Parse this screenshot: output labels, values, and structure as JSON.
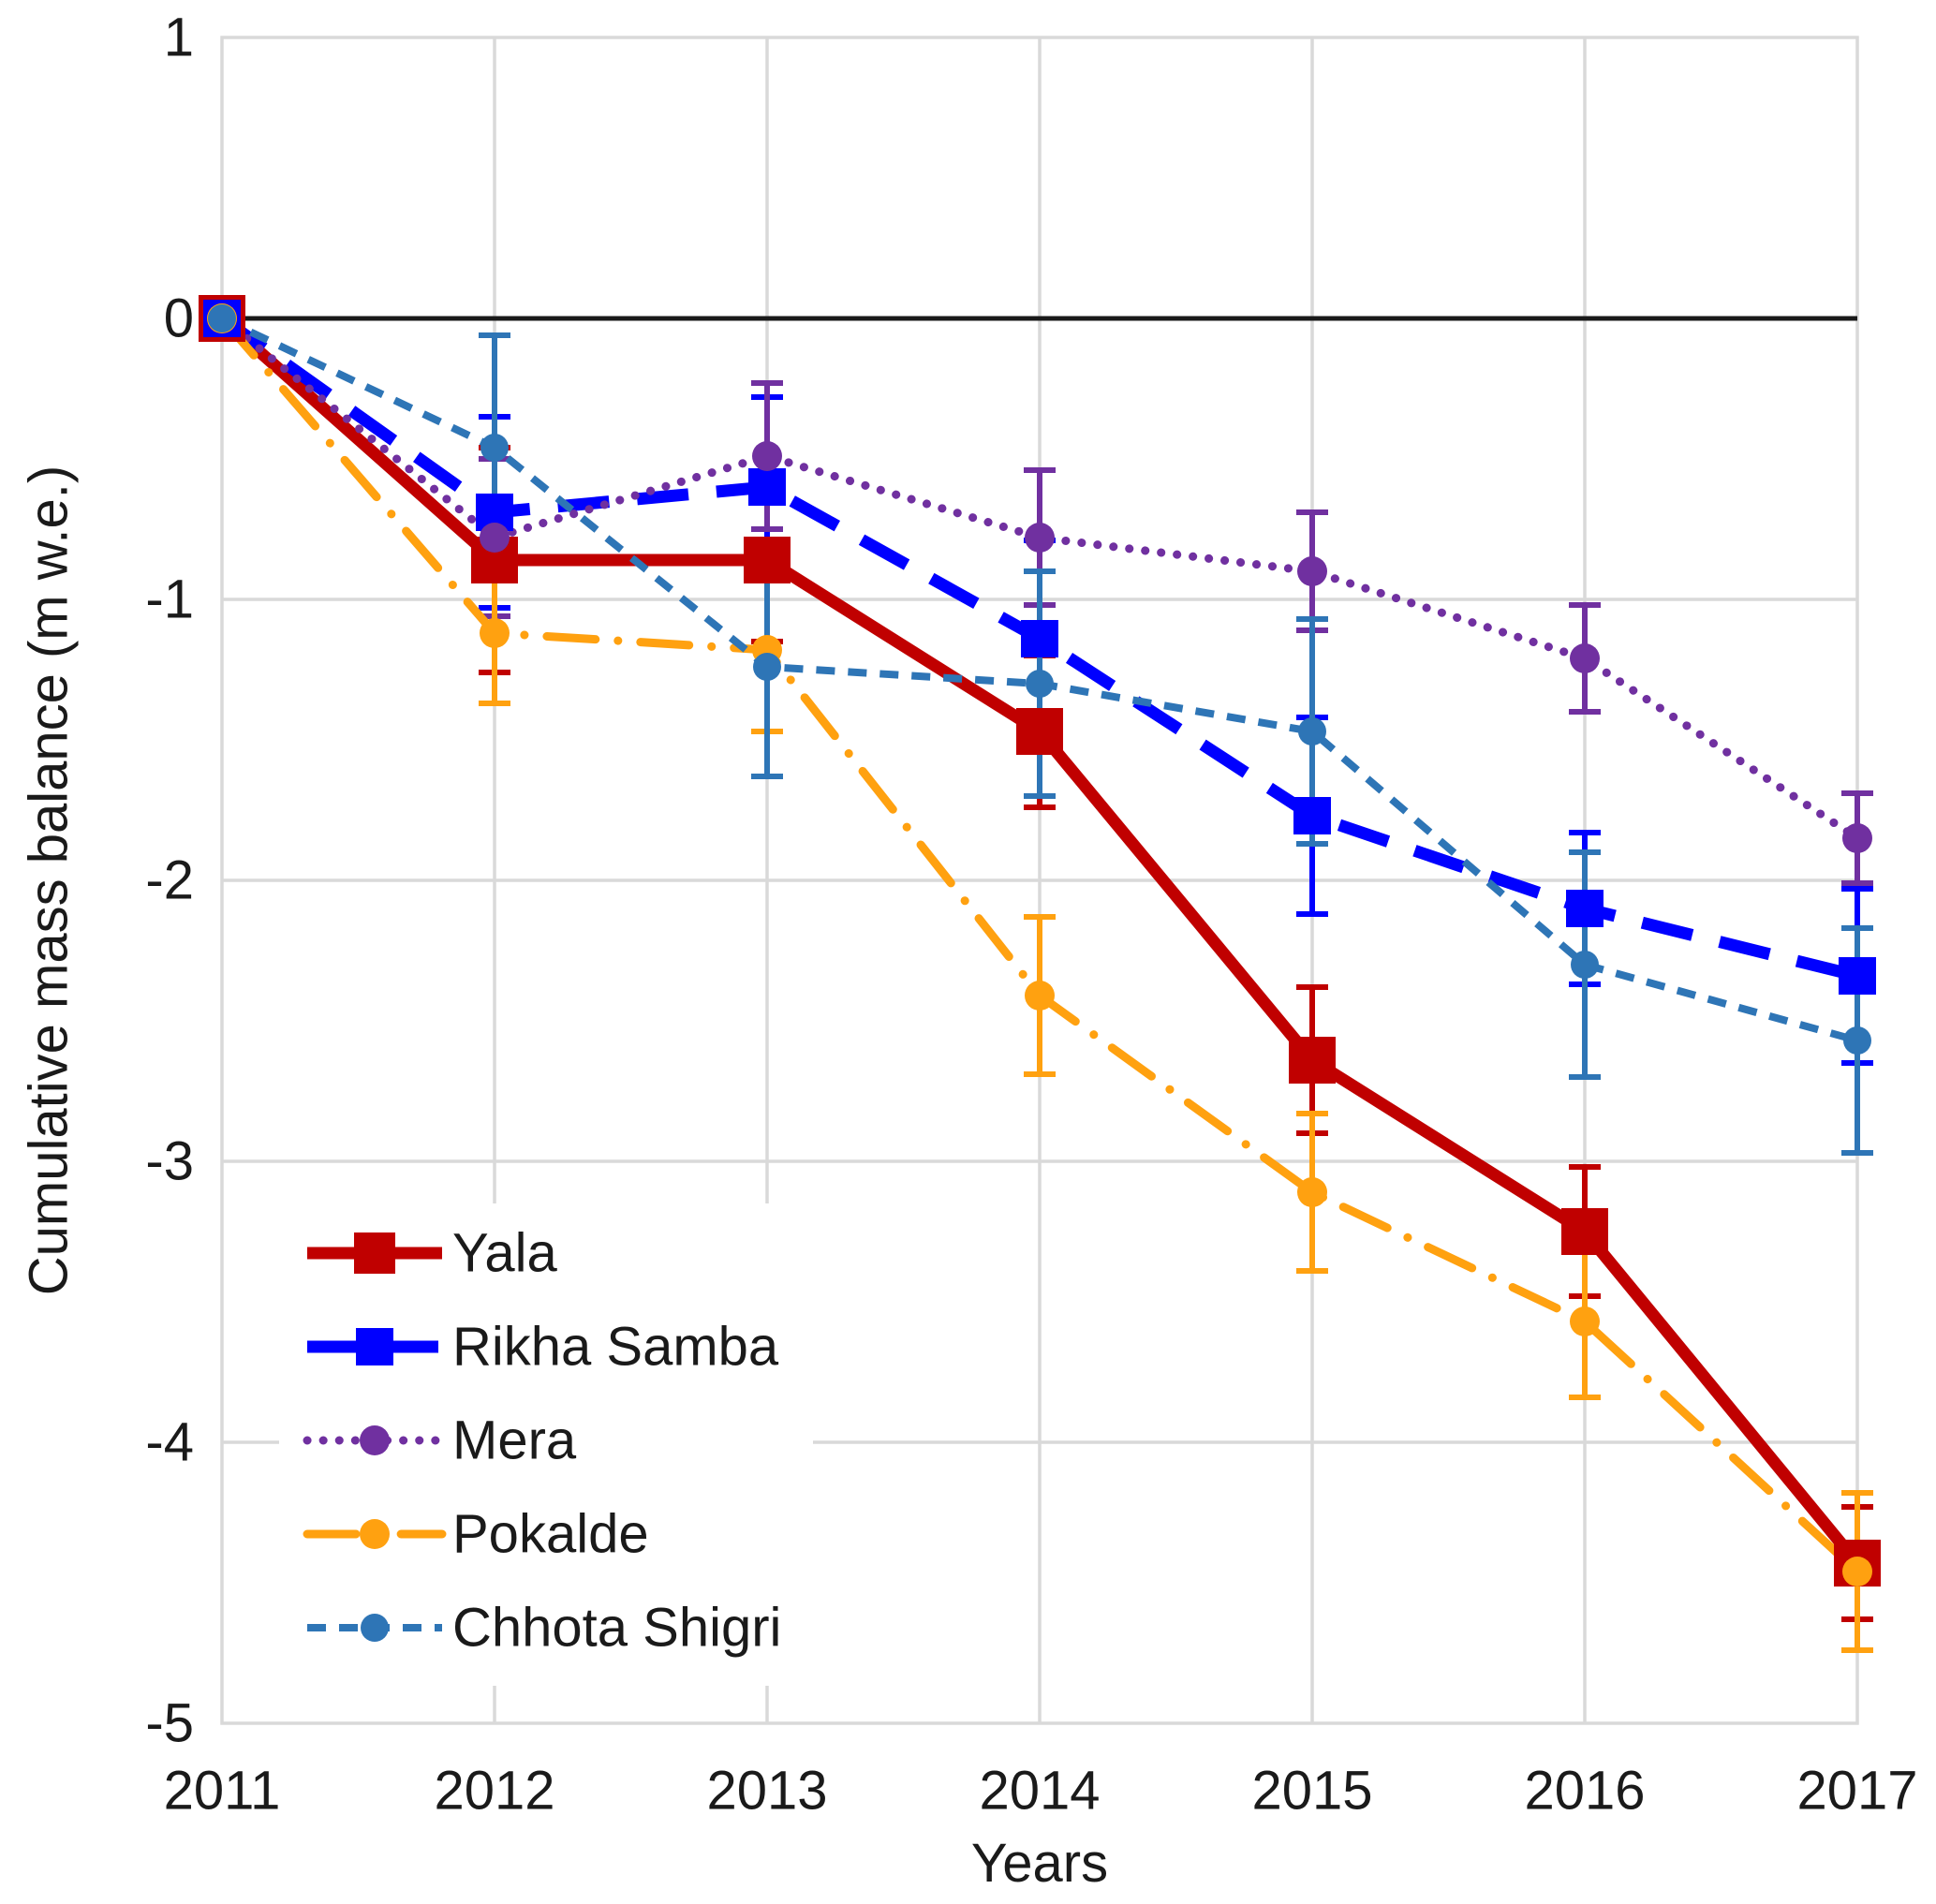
{
  "chart_data": {
    "type": "line",
    "title": "",
    "xlabel": "Years",
    "ylabel": "Cumulative mass balance (m w.e.)",
    "x": [
      2011,
      2012,
      2013,
      2014,
      2015,
      2016,
      2017
    ],
    "xticks": [
      "2011",
      "2012",
      "2013",
      "2014",
      "2015",
      "2016",
      "2017"
    ],
    "yticks": [
      "1",
      "0",
      "-1",
      "-2",
      "-3",
      "-4",
      "-5"
    ],
    "ytick_values": [
      1,
      0,
      -1,
      -2,
      -3,
      -4,
      -5
    ],
    "ylim": [
      -5,
      1
    ],
    "grid": true,
    "zero_line": true,
    "legend_position": "inside-bottom-left",
    "error_bars": true,
    "series": [
      {
        "name": "Yala",
        "color": "#C00000",
        "line_style": "solid",
        "marker": "square",
        "values": [
          0,
          -0.86,
          -0.86,
          -1.47,
          -2.64,
          -3.25,
          -4.43
        ],
        "errors": [
          0,
          0.4,
          0.29,
          0.27,
          0.26,
          0.23,
          0.2
        ]
      },
      {
        "name": "Rikha Samba",
        "color": "#0000FF",
        "line_style": "dashed",
        "marker": "square",
        "values": [
          0,
          -0.69,
          -0.6,
          -1.14,
          -1.77,
          -2.1,
          -2.34
        ],
        "errors": [
          0,
          0.34,
          0.32,
          0.35,
          0.35,
          0.27,
          0.31
        ]
      },
      {
        "name": "Mera",
        "color": "#7030A0",
        "line_style": "dotted",
        "marker": "circle",
        "values": [
          0,
          -0.78,
          -0.49,
          -0.78,
          -0.9,
          -1.21,
          -1.85
        ],
        "errors": [
          0,
          0.28,
          0.26,
          0.24,
          0.21,
          0.19,
          0.16
        ]
      },
      {
        "name": "Pokalde",
        "color": "#FFA110",
        "line_style": "dashdot",
        "marker": "circle",
        "values": [
          0,
          -1.12,
          -1.18,
          -2.41,
          -3.11,
          -3.57,
          -4.46
        ],
        "errors": [
          0,
          0.25,
          0.29,
          0.28,
          0.28,
          0.27,
          0.28
        ]
      },
      {
        "name": "Chhota Shigri",
        "color": "#2E75B6",
        "line_style": "dashed-small",
        "marker": "circle",
        "values": [
          0,
          -0.46,
          -1.24,
          -1.3,
          -1.47,
          -2.3,
          -2.57
        ],
        "errors": [
          0,
          0.4,
          0.39,
          0.4,
          0.4,
          0.4,
          0.4
        ]
      }
    ],
    "colors": {
      "gridline": "#D9D9D9",
      "zero_line": "#1A1A1A",
      "text": "#1A1A1A",
      "legend_background": "#FFFFFF"
    }
  }
}
